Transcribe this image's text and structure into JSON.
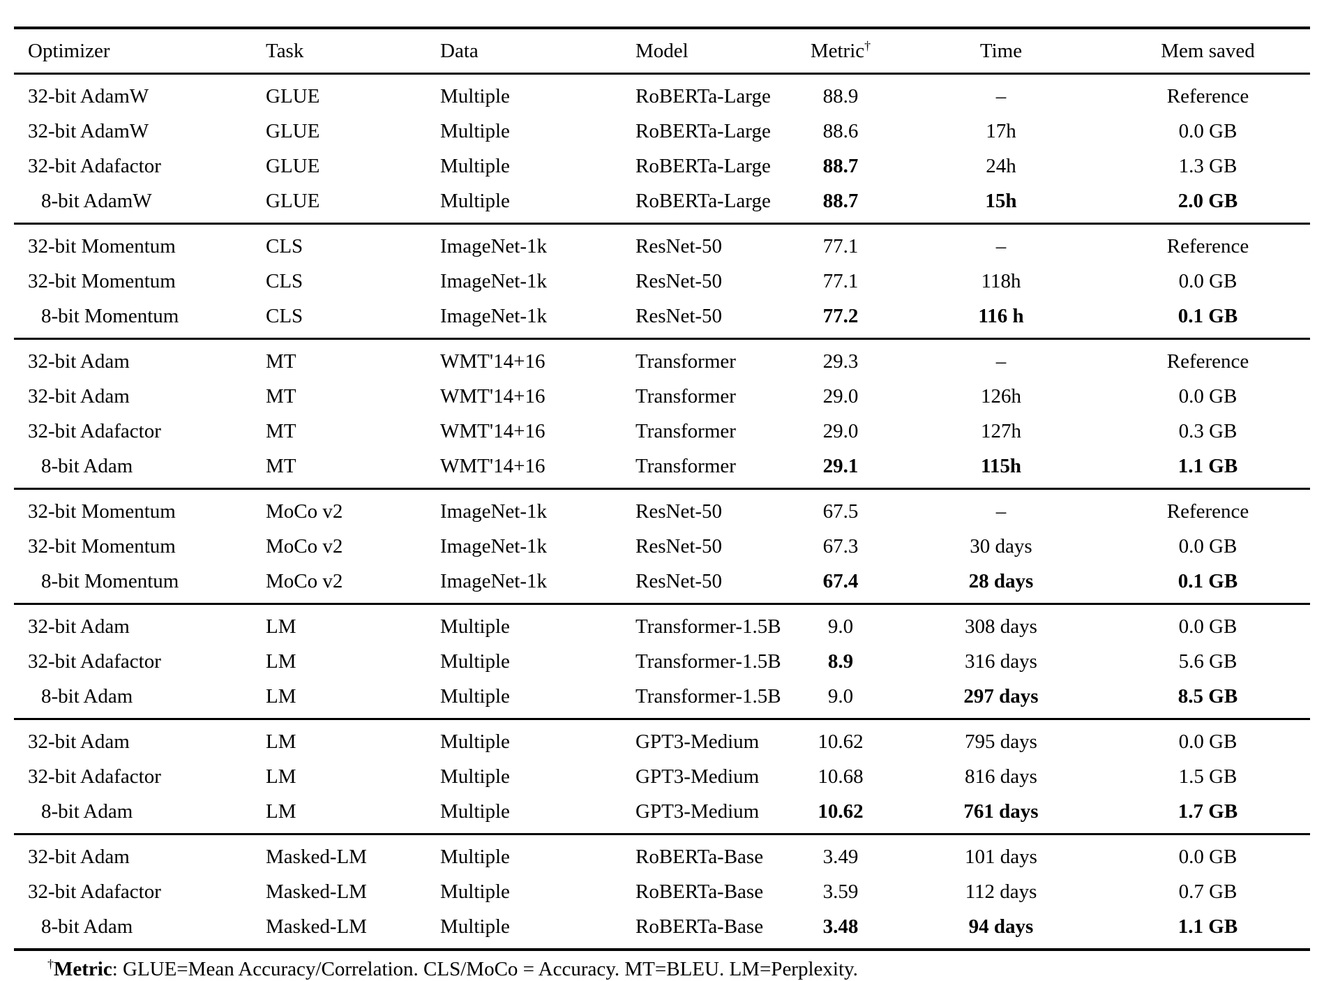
{
  "table": {
    "headers": [
      {
        "text": "Optimizer",
        "align": "left"
      },
      {
        "text": "Task",
        "align": "left"
      },
      {
        "text": "Data",
        "align": "left"
      },
      {
        "text": "Model",
        "align": "left"
      },
      {
        "text": "Metric",
        "sup": "†",
        "align": "center"
      },
      {
        "text": "Time",
        "align": "center"
      },
      {
        "text": "Mem saved",
        "align": "center"
      }
    ],
    "groups": [
      {
        "rows": [
          {
            "cells": [
              "32-bit AdamW",
              "GLUE",
              "Multiple",
              "RoBERTa-Large",
              "88.9",
              "–",
              "Reference"
            ],
            "bold": [],
            "indent": false
          },
          {
            "cells": [
              "32-bit AdamW",
              "GLUE",
              "Multiple",
              "RoBERTa-Large",
              "88.6",
              "17h",
              "0.0 GB"
            ],
            "bold": [],
            "indent": false
          },
          {
            "cells": [
              "32-bit Adafactor",
              "GLUE",
              "Multiple",
              "RoBERTa-Large",
              "88.7",
              "24h",
              "1.3 GB"
            ],
            "bold": [
              4
            ],
            "indent": false
          },
          {
            "cells": [
              "8-bit AdamW",
              "GLUE",
              "Multiple",
              "RoBERTa-Large",
              "88.7",
              "15h",
              "2.0 GB"
            ],
            "bold": [
              4,
              5,
              6
            ],
            "indent": true
          }
        ]
      },
      {
        "rows": [
          {
            "cells": [
              "32-bit Momentum",
              "CLS",
              "ImageNet-1k",
              "ResNet-50",
              "77.1",
              "–",
              "Reference"
            ],
            "bold": [],
            "indent": false
          },
          {
            "cells": [
              "32-bit Momentum",
              "CLS",
              "ImageNet-1k",
              "ResNet-50",
              "77.1",
              "118h",
              "0.0 GB"
            ],
            "bold": [],
            "indent": false
          },
          {
            "cells": [
              "8-bit Momentum",
              "CLS",
              "ImageNet-1k",
              "ResNet-50",
              "77.2",
              "116 h",
              "0.1 GB"
            ],
            "bold": [
              4,
              5,
              6
            ],
            "indent": true
          }
        ]
      },
      {
        "rows": [
          {
            "cells": [
              "32-bit Adam",
              "MT",
              "WMT'14+16",
              "Transformer",
              "29.3",
              "–",
              "Reference"
            ],
            "bold": [],
            "indent": false
          },
          {
            "cells": [
              "32-bit Adam",
              "MT",
              "WMT'14+16",
              "Transformer",
              "29.0",
              "126h",
              "0.0 GB"
            ],
            "bold": [],
            "indent": false
          },
          {
            "cells": [
              "32-bit Adafactor",
              "MT",
              "WMT'14+16",
              "Transformer",
              "29.0",
              "127h",
              "0.3 GB"
            ],
            "bold": [],
            "indent": false
          },
          {
            "cells": [
              "8-bit Adam",
              "MT",
              "WMT'14+16",
              "Transformer",
              "29.1",
              "115h",
              "1.1 GB"
            ],
            "bold": [
              4,
              5,
              6
            ],
            "indent": true
          }
        ]
      },
      {
        "rows": [
          {
            "cells": [
              "32-bit Momentum",
              "MoCo v2",
              "ImageNet-1k",
              "ResNet-50",
              "67.5",
              "–",
              "Reference"
            ],
            "bold": [],
            "indent": false
          },
          {
            "cells": [
              "32-bit Momentum",
              "MoCo v2",
              "ImageNet-1k",
              "ResNet-50",
              "67.3",
              "30 days",
              "0.0 GB"
            ],
            "bold": [],
            "indent": false
          },
          {
            "cells": [
              "8-bit Momentum",
              "MoCo v2",
              "ImageNet-1k",
              "ResNet-50",
              "67.4",
              "28 days",
              "0.1 GB"
            ],
            "bold": [
              4,
              5,
              6
            ],
            "indent": true
          }
        ]
      },
      {
        "rows": [
          {
            "cells": [
              "32-bit Adam",
              "LM",
              "Multiple",
              "Transformer-1.5B",
              "9.0",
              "308 days",
              "0.0 GB"
            ],
            "bold": [],
            "indent": false
          },
          {
            "cells": [
              "32-bit Adafactor",
              "LM",
              "Multiple",
              "Transformer-1.5B",
              "8.9",
              "316 days",
              "5.6 GB"
            ],
            "bold": [
              4
            ],
            "indent": false
          },
          {
            "cells": [
              "8-bit Adam",
              "LM",
              "Multiple",
              "Transformer-1.5B",
              "9.0",
              "297 days",
              "8.5 GB"
            ],
            "bold": [
              5,
              6
            ],
            "indent": true
          }
        ]
      },
      {
        "rows": [
          {
            "cells": [
              "32-bit Adam",
              "LM",
              "Multiple",
              "GPT3-Medium",
              "10.62",
              "795 days",
              "0.0 GB"
            ],
            "bold": [],
            "indent": false
          },
          {
            "cells": [
              "32-bit Adafactor",
              "LM",
              "Multiple",
              "GPT3-Medium",
              "10.68",
              "816 days",
              "1.5 GB"
            ],
            "bold": [],
            "indent": false
          },
          {
            "cells": [
              "8-bit Adam",
              "LM",
              "Multiple",
              "GPT3-Medium",
              "10.62",
              "761 days",
              "1.7 GB"
            ],
            "bold": [
              4,
              5,
              6
            ],
            "indent": true
          }
        ]
      },
      {
        "rows": [
          {
            "cells": [
              "32-bit Adam",
              "Masked-LM",
              "Multiple",
              "RoBERTa-Base",
              "3.49",
              "101 days",
              "0.0 GB"
            ],
            "bold": [],
            "indent": false
          },
          {
            "cells": [
              "32-bit Adafactor",
              "Masked-LM",
              "Multiple",
              "RoBERTa-Base",
              "3.59",
              "112 days",
              "0.7 GB"
            ],
            "bold": [],
            "indent": false
          },
          {
            "cells": [
              "8-bit Adam",
              "Masked-LM",
              "Multiple",
              "RoBERTa-Base",
              "3.48",
              "94 days",
              "1.1 GB"
            ],
            "bold": [
              4,
              5,
              6
            ],
            "indent": true
          }
        ]
      }
    ]
  },
  "footnote": {
    "dagger": "†",
    "label": "Metric",
    "text": ": GLUE=Mean Accuracy/Correlation. CLS/MoCo = Accuracy. MT=BLEU. LM=Perplexity."
  }
}
